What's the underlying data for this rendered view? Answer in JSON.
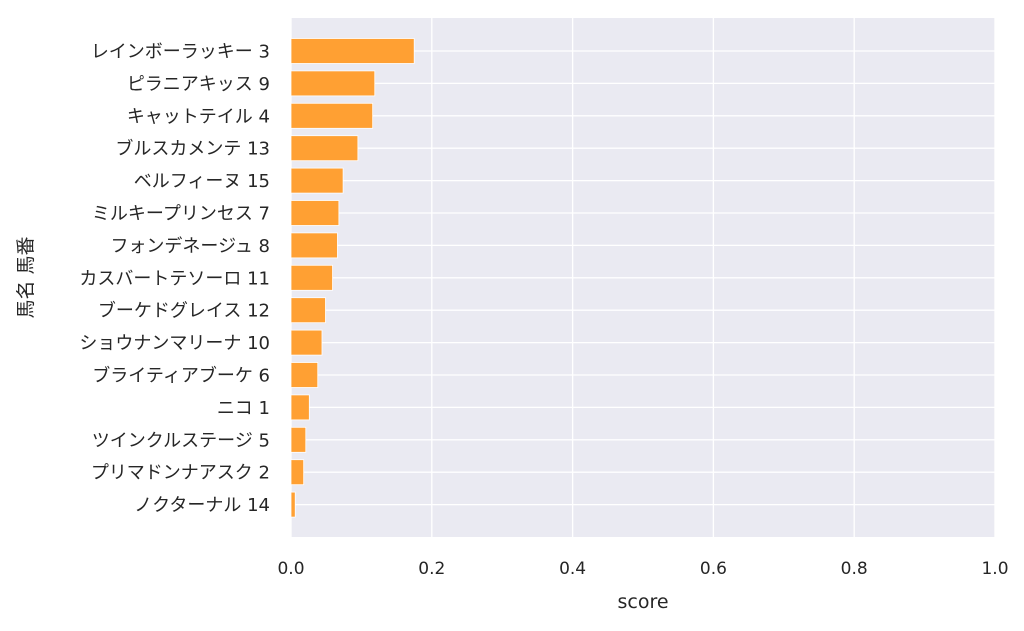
{
  "chart_data": {
    "type": "bar",
    "orientation": "horizontal",
    "title": "",
    "xlabel": "score",
    "ylabel": "馬名 馬番",
    "xlim": [
      0,
      1
    ],
    "xticks": [
      "0.0",
      "0.2",
      "0.4",
      "0.6",
      "0.8",
      "1.0"
    ],
    "grid": true,
    "legend": "none",
    "bar_color": "#ffa033",
    "background_color": "#eaeaf2",
    "categories": [
      "レインボーラッキー 3",
      "ピラニアキッス 9",
      "キャットテイル 4",
      "ブルスカメンテ 13",
      "ベルフィーヌ 15",
      "ミルキープリンセス 7",
      "フォンデネージュ 8",
      "カスバートテソーロ 11",
      "ブーケドグレイス 12",
      "ショウナンマリーナ 10",
      "ブライティアブーケ 6",
      "ニコ 1",
      "ツインクルステージ 5",
      "プリマドンナアスク 2",
      "ノクターナル 14"
    ],
    "values": [
      0.175,
      0.119,
      0.116,
      0.095,
      0.074,
      0.068,
      0.066,
      0.059,
      0.049,
      0.044,
      0.038,
      0.026,
      0.021,
      0.018,
      0.006
    ]
  }
}
